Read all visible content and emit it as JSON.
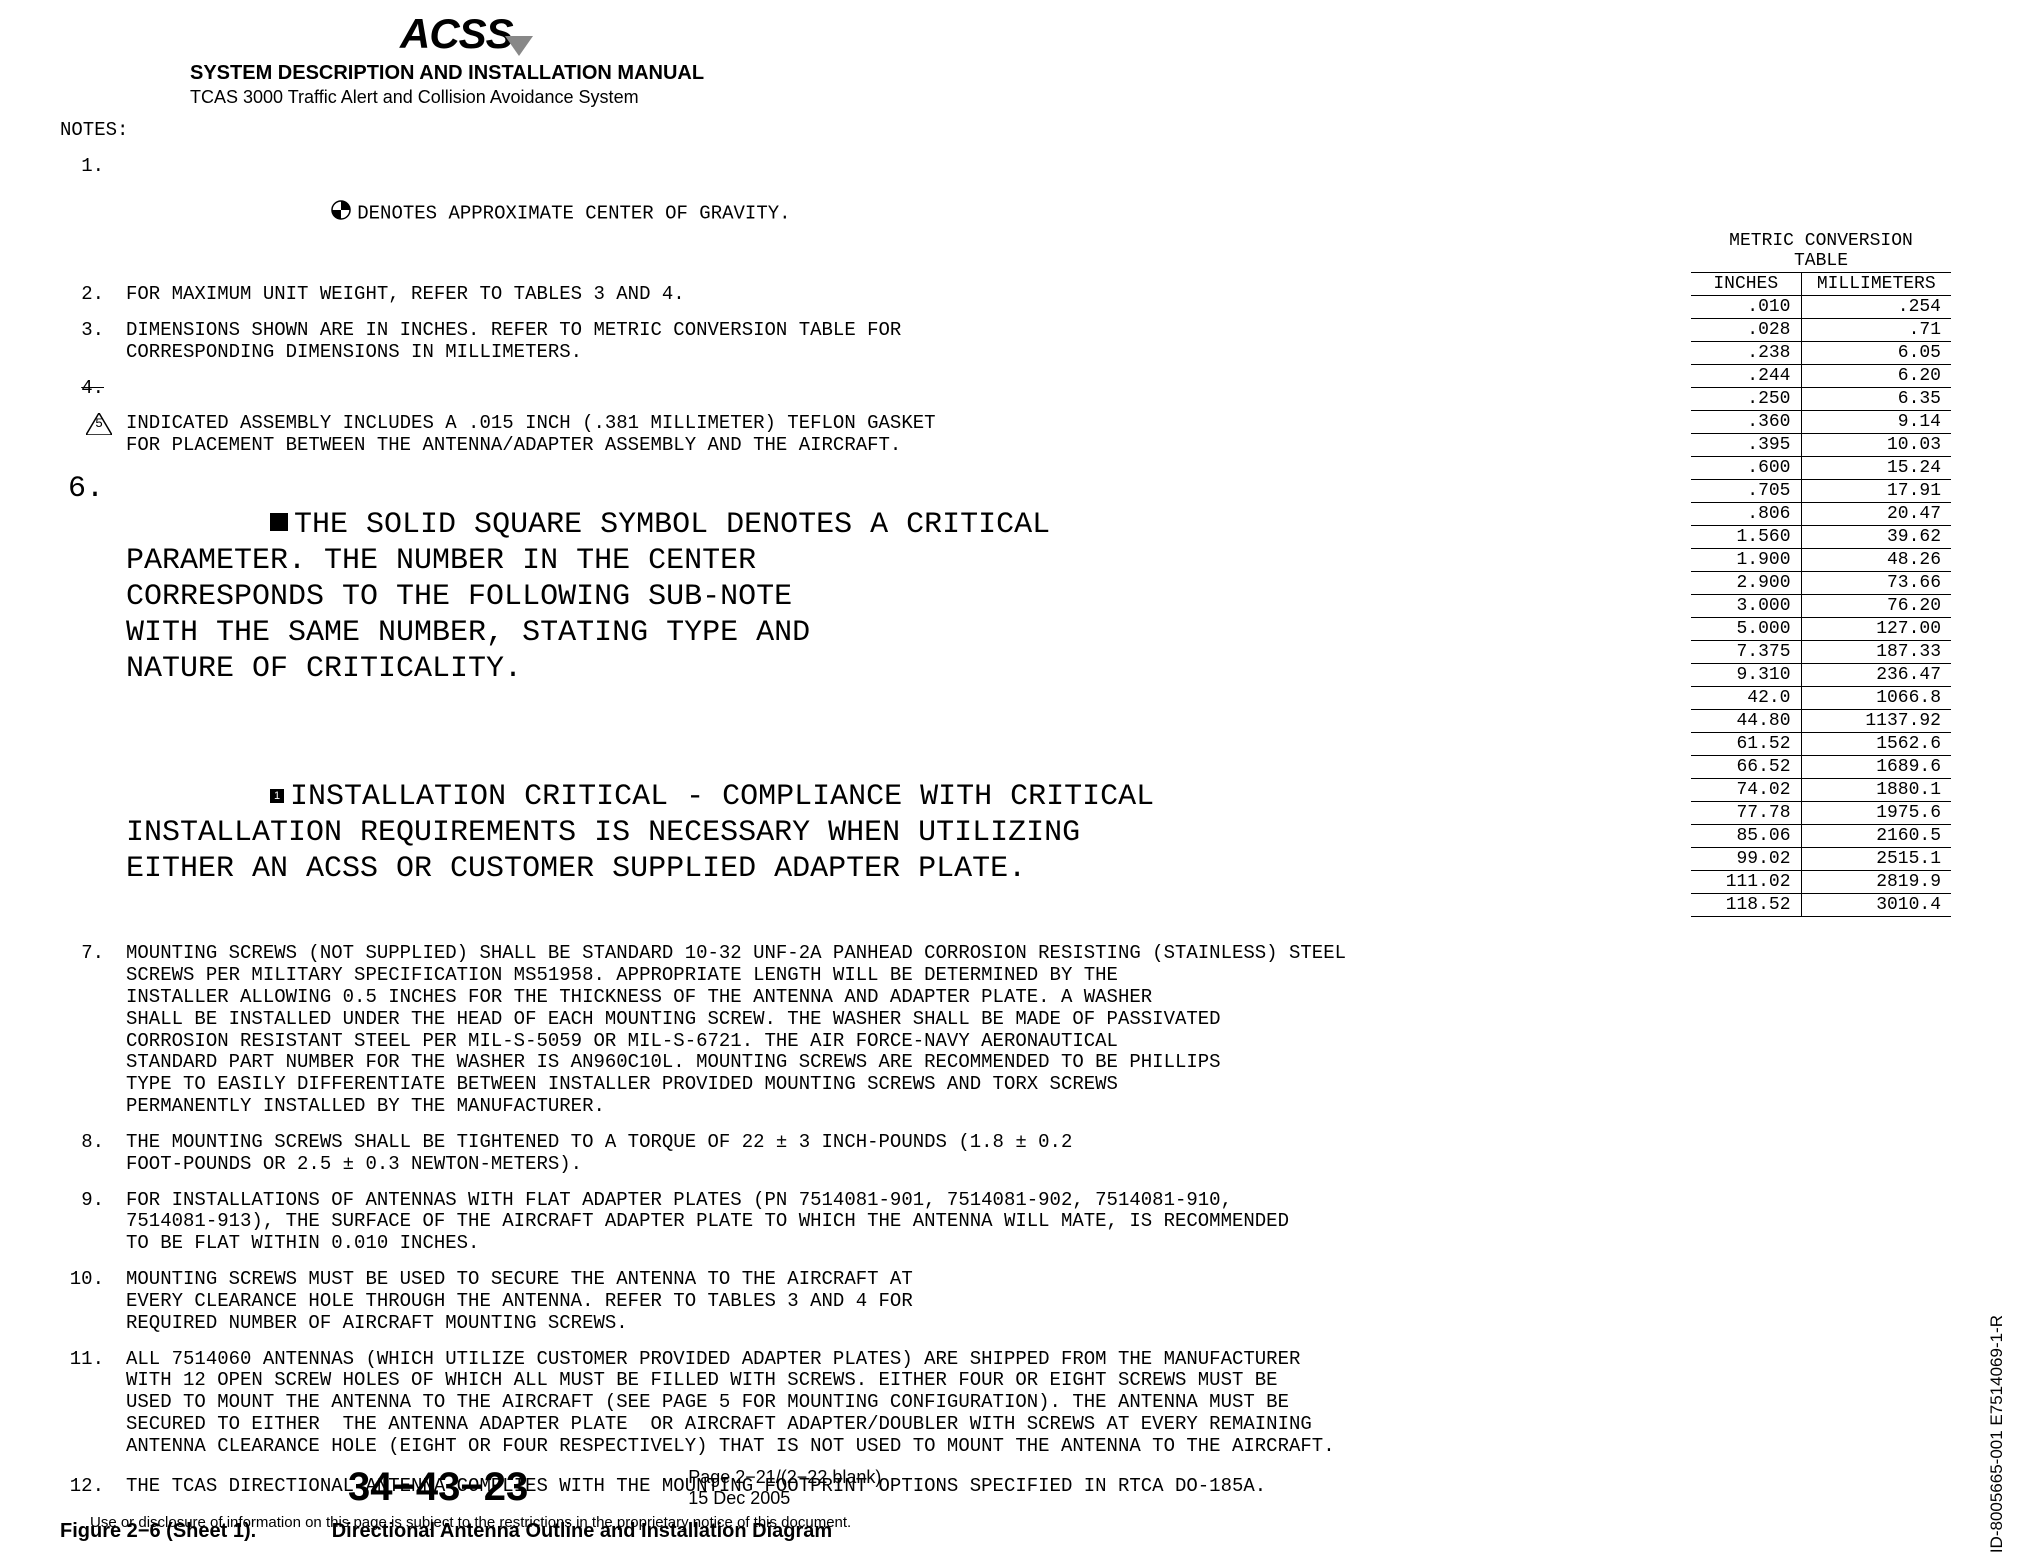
{
  "header": {
    "logo_text": "ACSS",
    "title": "SYSTEM DESCRIPTION AND INSTALLATION MANUAL",
    "subtitle": "TCAS 3000 Traffic Alert and Collision Avoidance System"
  },
  "notes_label": "NOTES:",
  "notes": {
    "n1": "DENOTES APPROXIMATE CENTER OF GRAVITY.",
    "n2": "FOR MAXIMUM UNIT WEIGHT, REFER TO TABLES 3 AND 4.",
    "n3": "DIMENSIONS SHOWN ARE IN INCHES. REFER TO METRIC CONVERSION TABLE FOR\nCORRESPONDING DIMENSIONS IN MILLIMETERS.",
    "n4_num": "4.",
    "n5": "INDICATED ASSEMBLY INCLUDES A .015 INCH (.381 MILLIMETER) TEFLON GASKET\nFOR PLACEMENT BETWEEN THE ANTENNA/ADAPTER ASSEMBLY AND THE AIRCRAFT.",
    "n6a": "THE SOLID SQUARE SYMBOL DENOTES A CRITICAL\nPARAMETER. THE NUMBER IN THE CENTER\nCORRESPONDS TO THE FOLLOWING SUB-NOTE\nWITH THE SAME NUMBER, STATING TYPE AND\nNATURE OF CRITICALITY.",
    "n6b": "INSTALLATION CRITICAL - COMPLIANCE WITH CRITICAL\nINSTALLATION REQUIREMENTS IS NECESSARY WHEN UTILIZING\nEITHER AN ACSS OR CUSTOMER SUPPLIED ADAPTER PLATE.",
    "n7": "MOUNTING SCREWS (NOT SUPPLIED) SHALL BE STANDARD 10-32 UNF-2A PANHEAD CORROSION RESISTING (STAINLESS) STEEL\nSCREWS PER MILITARY SPECIFICATION MS51958. APPROPRIATE LENGTH WILL BE DETERMINED BY THE\nINSTALLER ALLOWING 0.5 INCHES FOR THE THICKNESS OF THE ANTENNA AND ADAPTER PLATE. A WASHER\nSHALL BE INSTALLED UNDER THE HEAD OF EACH MOUNTING SCREW. THE WASHER SHALL BE MADE OF PASSIVATED\nCORROSION RESISTANT STEEL PER MIL-S-5059 OR MIL-S-6721. THE AIR FORCE-NAVY AERONAUTICAL\nSTANDARD PART NUMBER FOR THE WASHER IS AN960C10L. MOUNTING SCREWS ARE RECOMMENDED TO BE PHILLIPS\nTYPE TO EASILY DIFFERENTIATE BETWEEN INSTALLER PROVIDED MOUNTING SCREWS AND TORX SCREWS\nPERMANENTLY INSTALLED BY THE MANUFACTURER.",
    "n8": "THE MOUNTING SCREWS SHALL BE TIGHTENED TO A TORQUE OF 22 ± 3 INCH-POUNDS (1.8 ± 0.2\nFOOT-POUNDS OR 2.5 ± 0.3 NEWTON-METERS).",
    "n9": "FOR INSTALLATIONS OF ANTENNAS WITH FLAT ADAPTER PLATES (PN 7514081-901, 7514081-902, 7514081-910,\n7514081-913), THE SURFACE OF THE AIRCRAFT ADAPTER PLATE TO WHICH THE ANTENNA WILL MATE, IS RECOMMENDED\nTO BE FLAT WITHIN 0.010 INCHES.",
    "n10": "MOUNTING SCREWS MUST BE USED TO SECURE THE ANTENNA TO THE AIRCRAFT AT\nEVERY CLEARANCE HOLE THROUGH THE ANTENNA. REFER TO TABLES 3 AND 4 FOR\nREQUIRED NUMBER OF AIRCRAFT MOUNTING SCREWS.",
    "n11": "ALL 7514060 ANTENNAS (WHICH UTILIZE CUSTOMER PROVIDED ADAPTER PLATES) ARE SHIPPED FROM THE MANUFACTURER\nWITH 12 OPEN SCREW HOLES OF WHICH ALL MUST BE FILLED WITH SCREWS. EITHER FOUR OR EIGHT SCREWS MUST BE\nUSED TO MOUNT THE ANTENNA TO THE AIRCRAFT (SEE PAGE 5 FOR MOUNTING CONFIGURATION). THE ANTENNA MUST BE\nSECURED TO EITHER  THE ANTENNA ADAPTER PLATE  OR AIRCRAFT ADAPTER/DOUBLER WITH SCREWS AT EVERY REMAINING\nANTENNA CLEARANCE HOLE (EIGHT OR FOUR RESPECTIVELY) THAT IS NOT USED TO MOUNT THE ANTENNA TO THE AIRCRAFT.",
    "n12": "THE TCAS DIRECTIONAL ANTENNA COMPLIES WITH THE MOUNTING FOOTPRINT OPTIONS SPECIFIED IN RTCA DO-185A."
  },
  "conversion_table": {
    "title_l1": "METRIC CONVERSION",
    "title_l2": "TABLE",
    "col_in": "INCHES",
    "col_mm": "MILLIMETERS",
    "rows": [
      [
        ".010",
        ".254"
      ],
      [
        ".028",
        ".71"
      ],
      [
        ".238",
        "6.05"
      ],
      [
        ".244",
        "6.20"
      ],
      [
        ".250",
        "6.35"
      ],
      [
        ".360",
        "9.14"
      ],
      [
        ".395",
        "10.03"
      ],
      [
        ".600",
        "15.24"
      ],
      [
        ".705",
        "17.91"
      ],
      [
        ".806",
        "20.47"
      ],
      [
        "1.560",
        "39.62"
      ],
      [
        "1.900",
        "48.26"
      ],
      [
        "2.900",
        "73.66"
      ],
      [
        "3.000",
        "76.20"
      ],
      [
        "5.000",
        "127.00"
      ],
      [
        "7.375",
        "187.33"
      ],
      [
        "9.310",
        "236.47"
      ],
      [
        "42.0",
        "1066.8"
      ],
      [
        "44.80",
        "1137.92"
      ],
      [
        "61.52",
        "1562.6"
      ],
      [
        "66.52",
        "1689.6"
      ],
      [
        "74.02",
        "1880.1"
      ],
      [
        "77.78",
        "1975.6"
      ],
      [
        "85.06",
        "2160.5"
      ],
      [
        "99.02",
        "2515.1"
      ],
      [
        "111.02",
        "2819.9"
      ],
      [
        "118.52",
        "3010.4"
      ]
    ]
  },
  "side_doc_id": "ID-8005665-001  E7514069-1-R",
  "figure": {
    "label": "Figure 2−6 (Sheet 1).",
    "caption": "Directional Antenna Outline and Installation Diagram"
  },
  "footer": {
    "section": "34−43−23",
    "page_line1": "Page 2−21/(2−22 blank)",
    "page_line2": "15 Dec 2005",
    "disclaimer": "Use or disclosure of information on this page is subject to the restrictions in the proprietary notice of this document."
  },
  "colors": {
    "text": "#000000",
    "bg": "#ffffff"
  }
}
